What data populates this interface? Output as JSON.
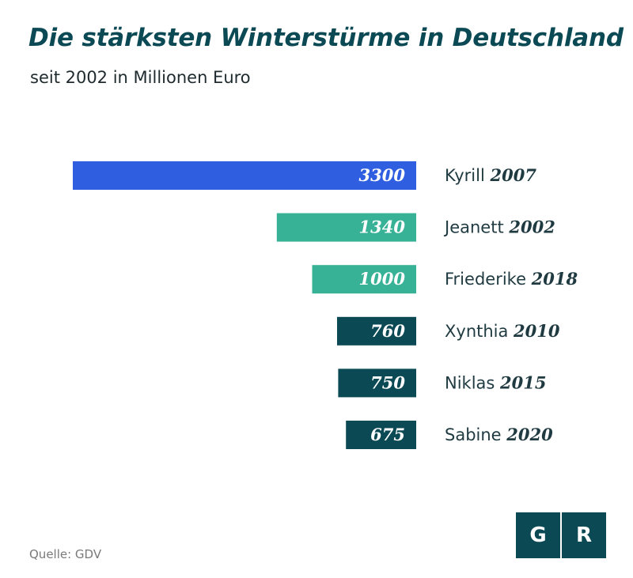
{
  "header": {
    "title": "Die stärksten Winterstürme in Deutschland",
    "subtitle": "seit 2002 in Millionen Euro"
  },
  "footer": {
    "source": "Quelle: GDV"
  },
  "logo": {
    "left_letter": "G",
    "right_letter": "R",
    "color": "#0b4a55"
  },
  "colors": {
    "highlight": "#2f5fe0",
    "mid": "#38b296",
    "dark": "#0b4a55"
  },
  "chart_data": {
    "type": "bar",
    "orientation": "horizontal",
    "title": "Die stärksten Winterstürme in Deutschland",
    "subtitle": "seit 2002 in Millionen Euro",
    "xlim": [
      0,
      3300
    ],
    "grid": false,
    "categories": [
      "Kyrill",
      "Jeanett",
      "Friederike",
      "Xynthia",
      "Niklas",
      "Sabine"
    ],
    "years": [
      "2007",
      "2002",
      "2018",
      "2010",
      "2015",
      "2020"
    ],
    "values": [
      3300,
      1340,
      1000,
      760,
      750,
      675
    ],
    "bar_colors": [
      "#2f5fe0",
      "#38b296",
      "#38b296",
      "#0b4a55",
      "#0b4a55",
      "#0b4a55"
    ]
  }
}
